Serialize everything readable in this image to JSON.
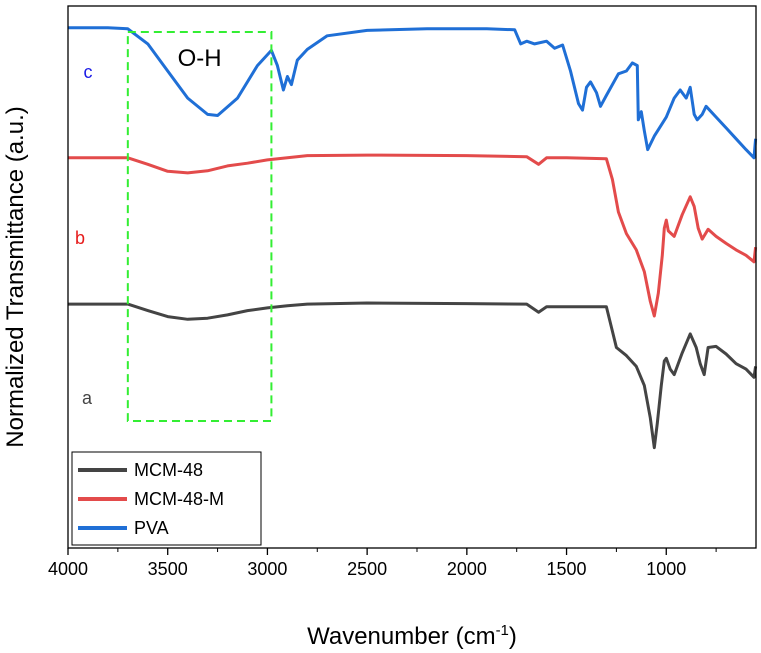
{
  "chart_data": {
    "type": "line",
    "title": "",
    "xlabel": "Wavenumber (cm",
    "xlabel_sup": "-1",
    "xlabel_close": ")",
    "ylabel": "Normalized Transmittance (a.u.)",
    "xlim": [
      4000,
      550
    ],
    "x_reversed": true,
    "ylim": [
      0,
      10
    ],
    "xticks": [
      4000,
      3500,
      3000,
      2500,
      2000,
      1500,
      1000
    ],
    "xtick_labels": [
      "4000",
      "3500",
      "3000",
      "2500",
      "2000",
      "1500",
      "1000"
    ],
    "legend": {
      "placement": "bottom-left",
      "entries": [
        {
          "name": "MCM-48",
          "color": "#444444"
        },
        {
          "name": "MCM-48-M",
          "color": "#e34b4b"
        },
        {
          "name": "PVA",
          "color": "#1f6fd6"
        }
      ]
    },
    "annotations": [
      {
        "text": "c",
        "series": "PVA",
        "color": "#1a1ae6"
      },
      {
        "text": "b",
        "series": "MCM-48-M",
        "color": "#e61a1a"
      },
      {
        "text": "a",
        "series": "MCM-48",
        "color": "#444444"
      },
      {
        "text": "O-H",
        "color": "#000000",
        "box_x_range": [
          3700,
          2980
        ],
        "box_color": "#33ee33"
      }
    ],
    "series": [
      {
        "name": "PVA",
        "color": "#1f6fd6",
        "points": [
          [
            4000,
            9.6
          ],
          [
            3800,
            9.6
          ],
          [
            3700,
            9.58
          ],
          [
            3600,
            9.3
          ],
          [
            3500,
            8.8
          ],
          [
            3400,
            8.3
          ],
          [
            3300,
            8.0
          ],
          [
            3250,
            7.98
          ],
          [
            3150,
            8.3
          ],
          [
            3050,
            8.9
          ],
          [
            2980,
            9.18
          ],
          [
            2950,
            8.9
          ],
          [
            2920,
            8.45
          ],
          [
            2900,
            8.7
          ],
          [
            2880,
            8.55
          ],
          [
            2850,
            9.0
          ],
          [
            2800,
            9.2
          ],
          [
            2700,
            9.45
          ],
          [
            2500,
            9.55
          ],
          [
            2200,
            9.58
          ],
          [
            1900,
            9.58
          ],
          [
            1760,
            9.56
          ],
          [
            1730,
            9.3
          ],
          [
            1700,
            9.35
          ],
          [
            1660,
            9.3
          ],
          [
            1600,
            9.35
          ],
          [
            1560,
            9.22
          ],
          [
            1520,
            9.28
          ],
          [
            1480,
            8.8
          ],
          [
            1440,
            8.2
          ],
          [
            1420,
            8.08
          ],
          [
            1400,
            8.5
          ],
          [
            1380,
            8.6
          ],
          [
            1350,
            8.4
          ],
          [
            1330,
            8.15
          ],
          [
            1300,
            8.35
          ],
          [
            1240,
            8.75
          ],
          [
            1200,
            8.8
          ],
          [
            1170,
            8.95
          ],
          [
            1145,
            8.9
          ],
          [
            1140,
            7.9
          ],
          [
            1125,
            8.05
          ],
          [
            1110,
            7.7
          ],
          [
            1093,
            7.35
          ],
          [
            1060,
            7.6
          ],
          [
            1000,
            7.95
          ],
          [
            960,
            8.3
          ],
          [
            930,
            8.45
          ],
          [
            900,
            8.3
          ],
          [
            880,
            8.5
          ],
          [
            860,
            8.0
          ],
          [
            845,
            7.9
          ],
          [
            820,
            8.0
          ],
          [
            800,
            8.15
          ],
          [
            750,
            7.95
          ],
          [
            700,
            7.75
          ],
          [
            650,
            7.55
          ],
          [
            600,
            7.35
          ],
          [
            560,
            7.2
          ],
          [
            552,
            7.55
          ]
        ]
      },
      {
        "name": "MCM-48-M",
        "color": "#e34b4b",
        "points": [
          [
            4000,
            7.2
          ],
          [
            3700,
            7.2
          ],
          [
            3600,
            7.08
          ],
          [
            3500,
            6.95
          ],
          [
            3400,
            6.92
          ],
          [
            3300,
            6.96
          ],
          [
            3200,
            7.05
          ],
          [
            3100,
            7.1
          ],
          [
            3000,
            7.16
          ],
          [
            2900,
            7.2
          ],
          [
            2800,
            7.24
          ],
          [
            2500,
            7.25
          ],
          [
            2000,
            7.24
          ],
          [
            1700,
            7.22
          ],
          [
            1640,
            7.08
          ],
          [
            1600,
            7.2
          ],
          [
            1500,
            7.2
          ],
          [
            1300,
            7.18
          ],
          [
            1270,
            6.8
          ],
          [
            1240,
            6.2
          ],
          [
            1200,
            5.8
          ],
          [
            1150,
            5.5
          ],
          [
            1110,
            5.1
          ],
          [
            1080,
            4.55
          ],
          [
            1060,
            4.28
          ],
          [
            1040,
            4.7
          ],
          [
            1020,
            5.4
          ],
          [
            1010,
            5.9
          ],
          [
            1000,
            6.05
          ],
          [
            990,
            5.85
          ],
          [
            960,
            5.75
          ],
          [
            920,
            6.15
          ],
          [
            880,
            6.48
          ],
          [
            860,
            6.3
          ],
          [
            840,
            5.9
          ],
          [
            820,
            5.7
          ],
          [
            790,
            5.88
          ],
          [
            750,
            5.75
          ],
          [
            700,
            5.62
          ],
          [
            650,
            5.5
          ],
          [
            600,
            5.4
          ],
          [
            560,
            5.28
          ],
          [
            552,
            5.55
          ]
        ]
      },
      {
        "name": "MCM-48",
        "color": "#444444",
        "points": [
          [
            4000,
            4.5
          ],
          [
            3700,
            4.5
          ],
          [
            3600,
            4.38
          ],
          [
            3500,
            4.27
          ],
          [
            3400,
            4.22
          ],
          [
            3300,
            4.24
          ],
          [
            3200,
            4.3
          ],
          [
            3100,
            4.38
          ],
          [
            3000,
            4.43
          ],
          [
            2900,
            4.47
          ],
          [
            2800,
            4.5
          ],
          [
            2500,
            4.52
          ],
          [
            2000,
            4.51
          ],
          [
            1700,
            4.5
          ],
          [
            1640,
            4.35
          ],
          [
            1600,
            4.45
          ],
          [
            1300,
            4.45
          ],
          [
            1270,
            4.0
          ],
          [
            1250,
            3.7
          ],
          [
            1200,
            3.55
          ],
          [
            1150,
            3.35
          ],
          [
            1110,
            3.0
          ],
          [
            1080,
            2.4
          ],
          [
            1060,
            1.85
          ],
          [
            1045,
            2.3
          ],
          [
            1025,
            3.0
          ],
          [
            1010,
            3.45
          ],
          [
            1000,
            3.5
          ],
          [
            980,
            3.3
          ],
          [
            960,
            3.2
          ],
          [
            920,
            3.6
          ],
          [
            880,
            3.95
          ],
          [
            850,
            3.7
          ],
          [
            830,
            3.4
          ],
          [
            810,
            3.2
          ],
          [
            790,
            3.7
          ],
          [
            750,
            3.72
          ],
          [
            700,
            3.58
          ],
          [
            650,
            3.4
          ],
          [
            600,
            3.3
          ],
          [
            560,
            3.15
          ],
          [
            552,
            3.35
          ]
        ]
      }
    ]
  }
}
